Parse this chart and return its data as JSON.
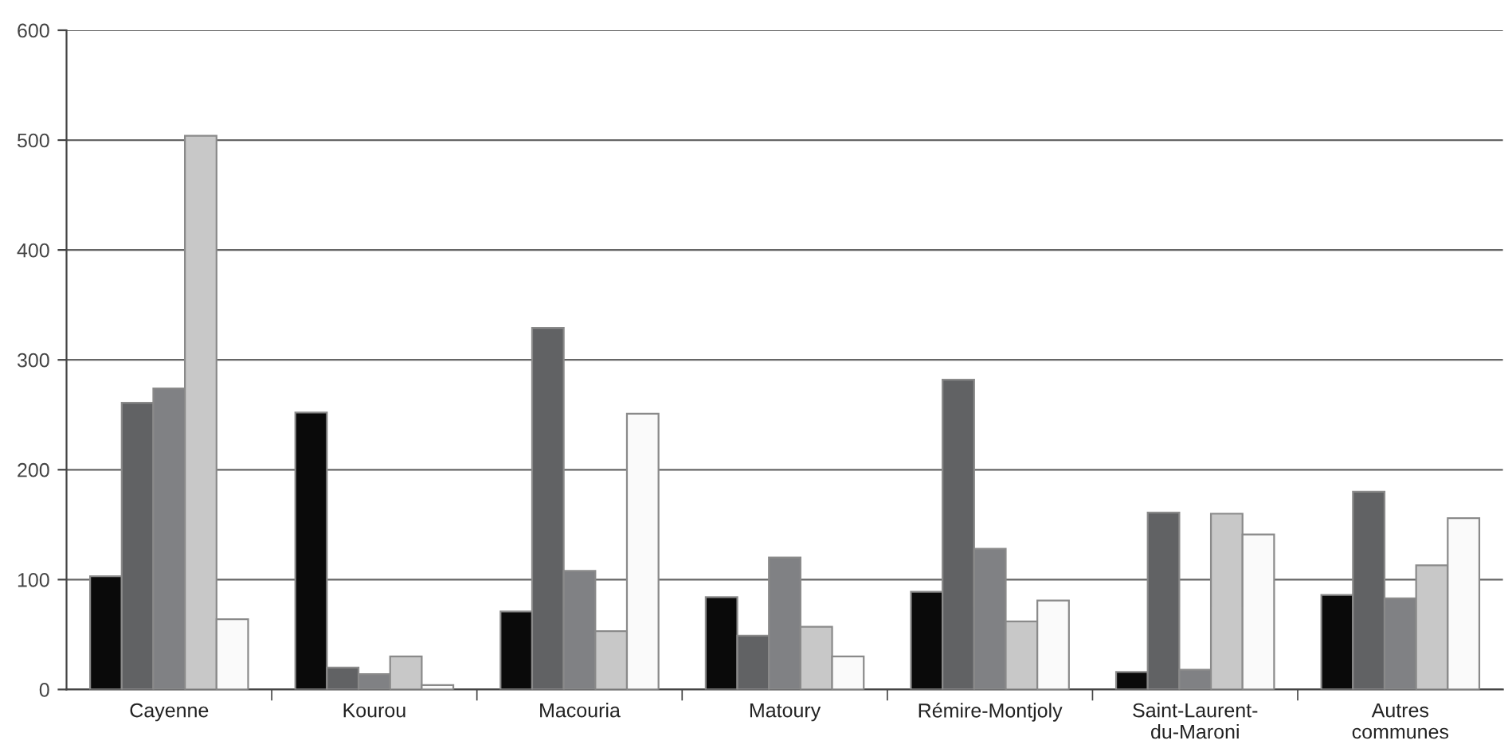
{
  "chart_data": {
    "type": "bar",
    "categories": [
      "Cayenne",
      "Kourou",
      "Macouria",
      "Matoury",
      "Rémire-Montjoly",
      "Saint-Laurent-\ndu-Maroni",
      "Autres\ncommunes"
    ],
    "series": [
      {
        "color": "#0a0a0a",
        "values": [
          103,
          252,
          71,
          84,
          89,
          16,
          86
        ]
      },
      {
        "color": "#616264",
        "values": [
          261,
          20,
          329,
          49,
          282,
          161,
          180
        ]
      },
      {
        "color": "#808184",
        "values": [
          274,
          14,
          108,
          120,
          128,
          18,
          83
        ]
      },
      {
        "color": "#c8c8c8",
        "values": [
          504,
          30,
          53,
          57,
          62,
          160,
          113
        ]
      },
      {
        "color": "#fafafa",
        "values": [
          64,
          4,
          251,
          30,
          81,
          141,
          156
        ]
      }
    ],
    "ylim": [
      0,
      600
    ],
    "yticks": [
      0,
      100,
      200,
      300,
      400,
      500,
      600
    ],
    "grid": "y"
  }
}
